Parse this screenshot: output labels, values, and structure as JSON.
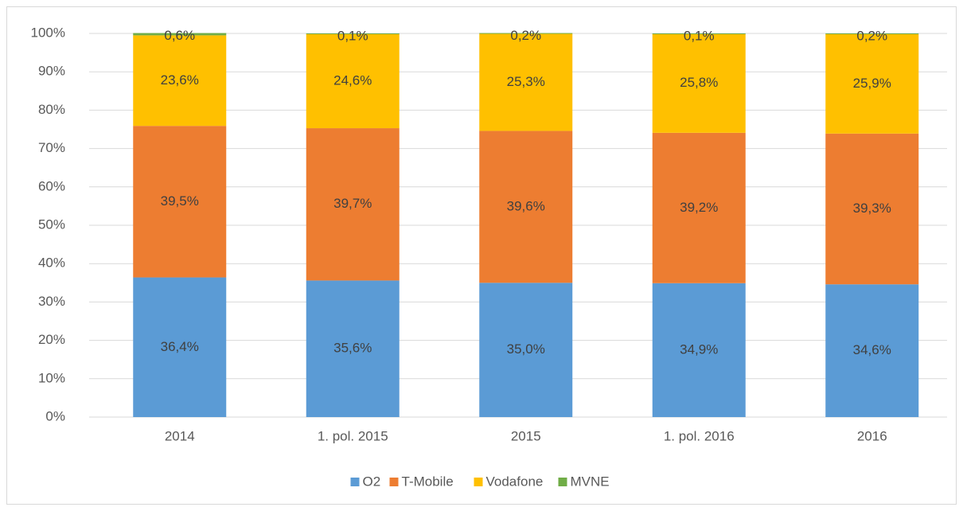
{
  "chart_data": {
    "type": "stacked_bar",
    "categories": [
      "2014",
      "1. pol. 2015",
      "2015",
      "1. pol. 2016",
      "2016"
    ],
    "series": [
      {
        "name": "O2",
        "color": "#5b9bd5",
        "values": [
          36.4,
          35.6,
          35.0,
          34.9,
          34.6
        ],
        "value_labels": [
          "36,4%",
          "35,6%",
          "35,0%",
          "34,9%",
          "34,6%"
        ]
      },
      {
        "name": "T-Mobile",
        "color": "#ed7d31",
        "values": [
          39.5,
          39.7,
          39.6,
          39.2,
          39.3
        ],
        "value_labels": [
          "39,5%",
          "39,7%",
          "39,6%",
          "39,2%",
          "39,3%"
        ]
      },
      {
        "name": "Vodafone",
        "color": "#ffc000",
        "values": [
          23.6,
          24.6,
          25.3,
          25.8,
          25.9
        ],
        "value_labels": [
          "23,6%",
          "24,6%",
          "25,3%",
          "25,8%",
          "25,9%"
        ]
      },
      {
        "name": "MVNE",
        "color": "#70ad47",
        "values": [
          0.6,
          0.1,
          0.2,
          0.1,
          0.2
        ],
        "value_labels": [
          "0,6%",
          "0,1%",
          "0,2%",
          "0,1%",
          "0,2%"
        ]
      }
    ],
    "ylim": [
      0,
      100
    ],
    "yticks": [
      {
        "value": 0,
        "label": "0%"
      },
      {
        "value": 10,
        "label": "10%"
      },
      {
        "value": 20,
        "label": "20%"
      },
      {
        "value": 30,
        "label": "30%"
      },
      {
        "value": 40,
        "label": "40%"
      },
      {
        "value": 50,
        "label": "50%"
      },
      {
        "value": 60,
        "label": "60%"
      },
      {
        "value": 70,
        "label": "70%"
      },
      {
        "value": 80,
        "label": "80%"
      },
      {
        "value": 90,
        "label": "90%"
      },
      {
        "value": 100,
        "label": "100%"
      }
    ],
    "grid": true,
    "legend": "bottom"
  }
}
